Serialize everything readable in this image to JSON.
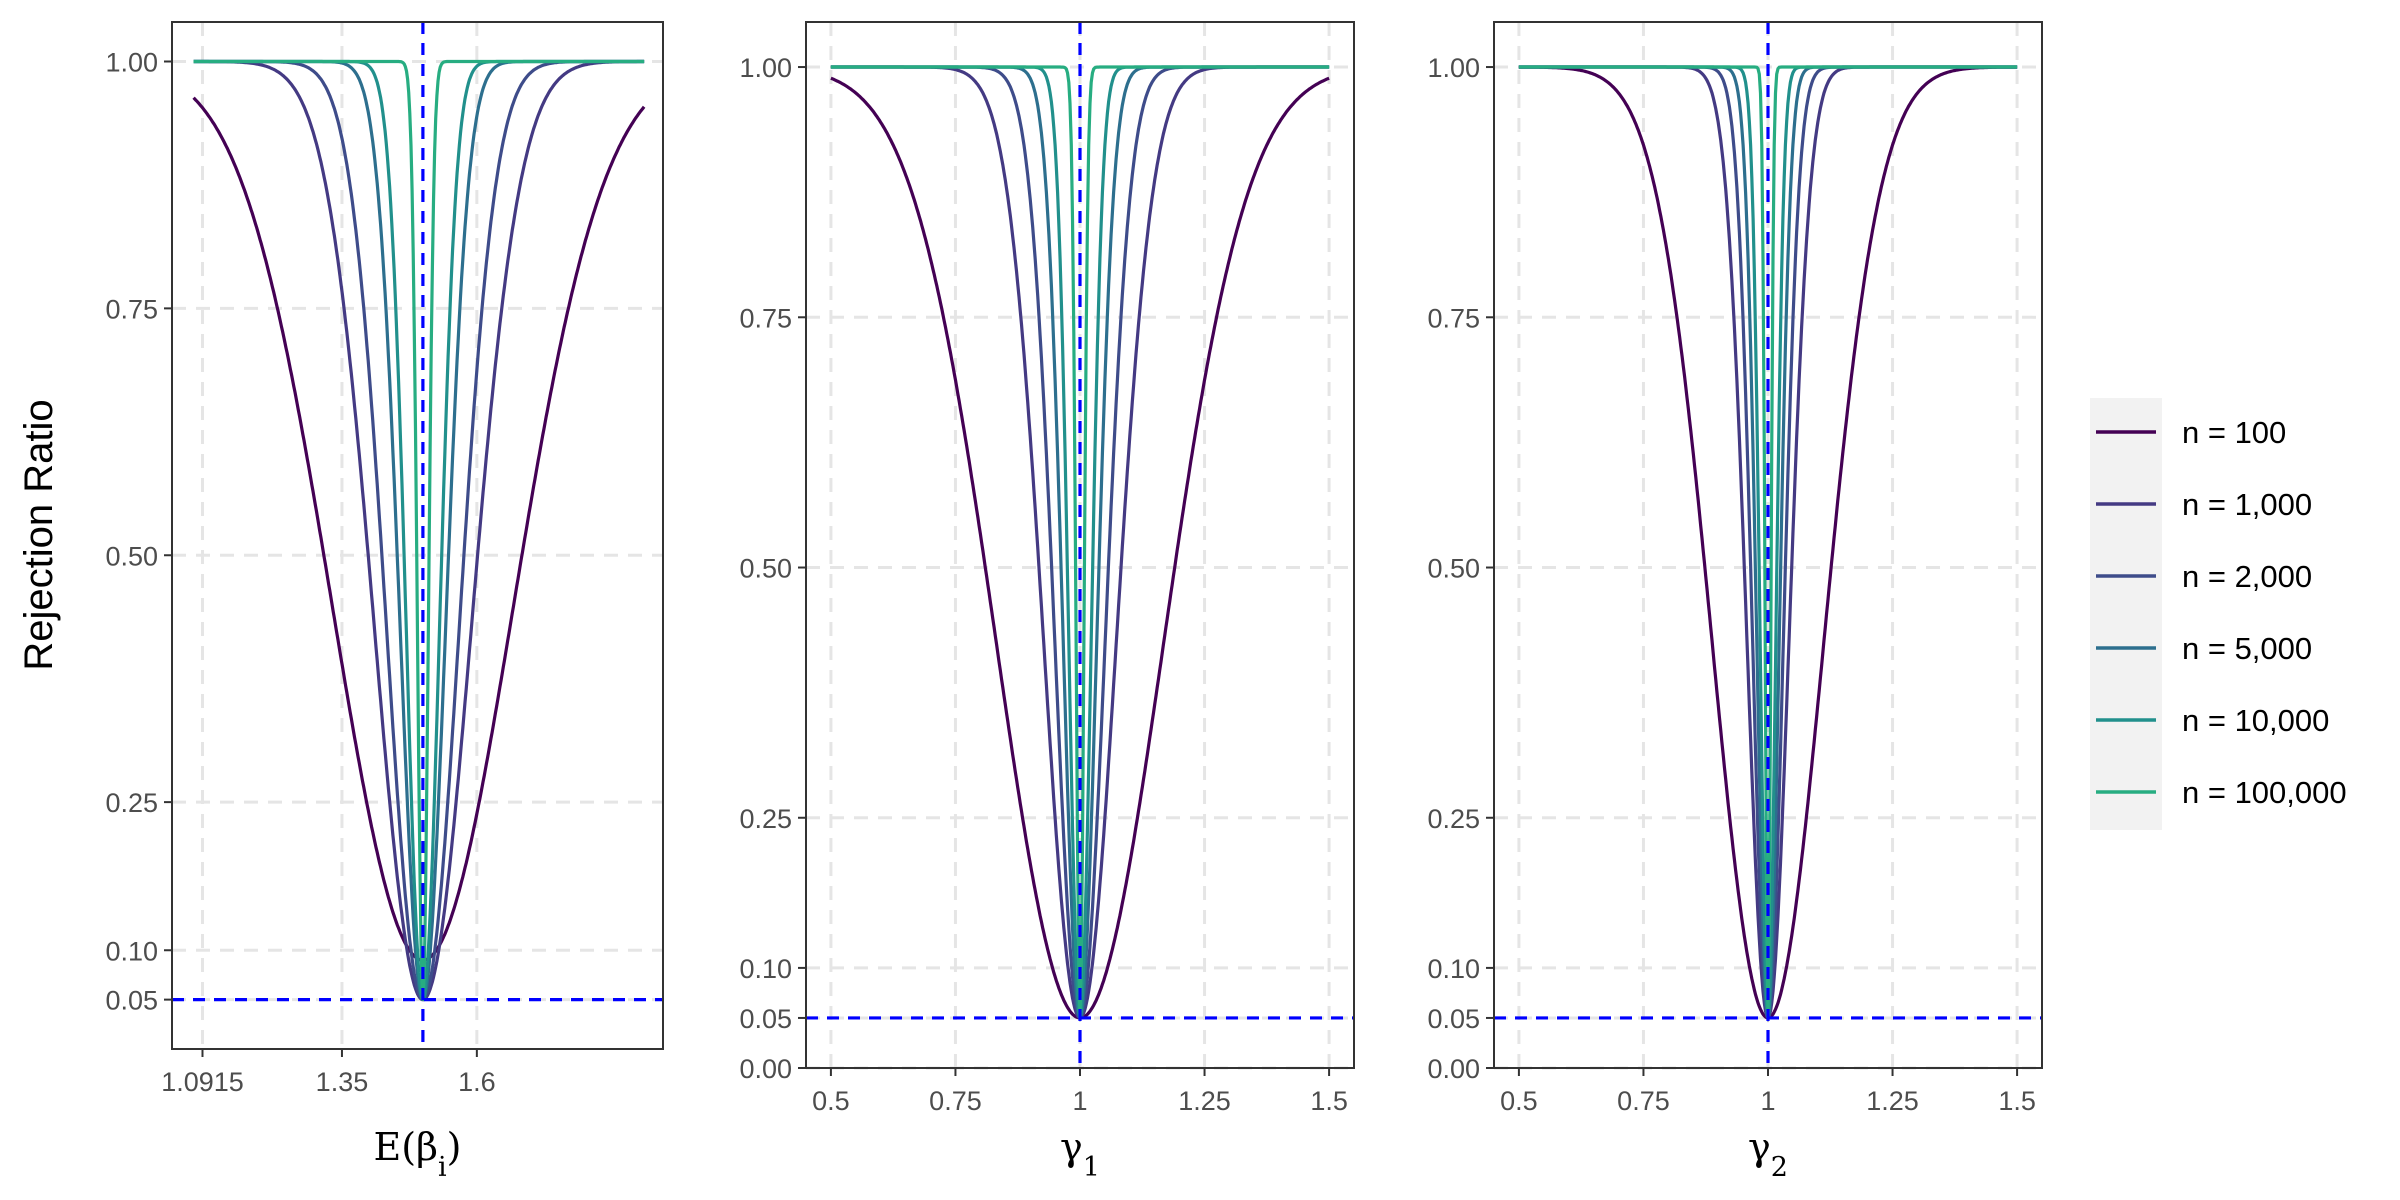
{
  "chart_data": [
    {
      "type": "line",
      "panel": "left",
      "xlabel_main": "E(β",
      "xlabel_sub": "i",
      "xlabel_close": ")",
      "ylabel": "Rejection Ratio",
      "xlim": [
        1.035,
        1.945
      ],
      "ylim": [
        0.0,
        1.04
      ],
      "x_ticks": [
        1.0915,
        1.35,
        1.6
      ],
      "x_tick_labels": [
        "1.0915",
        "1.35",
        "1.6"
      ],
      "y_ticks": [
        0.05,
        0.1,
        0.25,
        0.5,
        0.75,
        1.0
      ],
      "y_tick_labels": [
        "0.05",
        "0.10",
        "0.25",
        "0.50",
        "0.75",
        "1.00"
      ],
      "x_range": [
        1.075,
        1.91
      ],
      "center": 1.5,
      "ref_vline": 1.5,
      "ref_hline": 0.05,
      "grid": true,
      "series_halfwidth": [
        0.3,
        0.16,
        0.12,
        0.075,
        0.055,
        0.018
      ],
      "series_floor": [
        0.09,
        0.05,
        0.05,
        0.05,
        0.05,
        0.05
      ]
    },
    {
      "type": "line",
      "panel": "middle",
      "xlabel_main": "γ",
      "xlabel_sub": "1",
      "ylabel": "",
      "xlim": [
        0.45,
        1.55
      ],
      "ylim": [
        0.0,
        1.045
      ],
      "x_ticks": [
        0.5,
        0.75,
        1.0,
        1.25,
        1.5
      ],
      "x_tick_labels": [
        "0.5",
        "0.75",
        "1",
        "1.25",
        "1.5"
      ],
      "y_ticks": [
        0.0,
        0.05,
        0.1,
        0.25,
        0.5,
        0.75,
        1.0
      ],
      "y_tick_labels": [
        "0.00",
        "0.05",
        "0.10",
        "0.25",
        "0.50",
        "0.75",
        "1.00"
      ],
      "x_range": [
        0.5,
        1.5
      ],
      "center": 1.0,
      "ref_vline": 1.0,
      "ref_hline": 0.05,
      "grid": true,
      "series_halfwidth": [
        0.3,
        0.13,
        0.09,
        0.06,
        0.04,
        0.014
      ],
      "series_floor": [
        0.05,
        0.05,
        0.05,
        0.05,
        0.05,
        0.05
      ]
    },
    {
      "type": "line",
      "panel": "right",
      "xlabel_main": "γ",
      "xlabel_sub": "2",
      "ylabel": "",
      "xlim": [
        0.45,
        1.55
      ],
      "ylim": [
        0.0,
        1.045
      ],
      "x_ticks": [
        0.5,
        0.75,
        1.0,
        1.25,
        1.5
      ],
      "x_tick_labels": [
        "0.5",
        "0.75",
        "1",
        "1.25",
        "1.5"
      ],
      "y_ticks": [
        0.0,
        0.05,
        0.1,
        0.25,
        0.5,
        0.75,
        1.0
      ],
      "y_tick_labels": [
        "0.00",
        "0.05",
        "0.10",
        "0.25",
        "0.50",
        "0.75",
        "1.00"
      ],
      "x_range": [
        0.5,
        1.5
      ],
      "center": 1.0,
      "ref_vline": 1.0,
      "ref_hline": 0.05,
      "grid": true,
      "series_halfwidth": [
        0.2,
        0.075,
        0.055,
        0.04,
        0.028,
        0.01
      ],
      "series_floor": [
        0.05,
        0.05,
        0.05,
        0.05,
        0.05,
        0.05
      ]
    }
  ],
  "legend": {
    "placement": "right",
    "items": [
      {
        "label": "n = 100",
        "color": "#440154"
      },
      {
        "label": "n = 1,000",
        "color": "#443A83"
      },
      {
        "label": "n = 2,000",
        "color": "#3E4C8A"
      },
      {
        "label": "n = 5,000",
        "color": "#2D6F8E"
      },
      {
        "label": "n = 10,000",
        "color": "#21908C"
      },
      {
        "label": "n = 100,000",
        "color": "#27AD81"
      }
    ]
  },
  "colors": {
    "reference_line": "#0000FF",
    "grid": "#E5E5E5",
    "panel_border": "#333333",
    "legend_bg": "#F2F2F2"
  }
}
